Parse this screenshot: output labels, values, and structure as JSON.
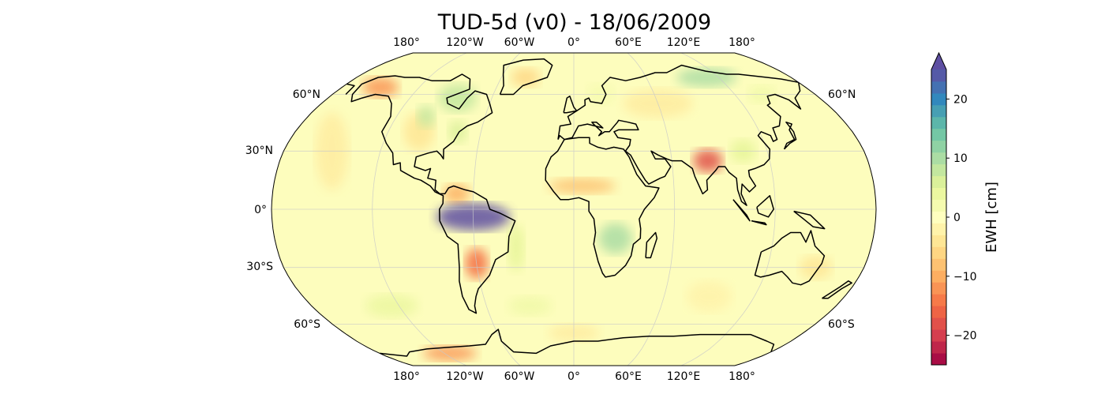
{
  "title": "TUD-5d (v0) - 18/06/2009",
  "lon_labels_top": [
    "180°",
    "120°W",
    "60°W",
    "0°",
    "60°E",
    "120°E",
    "180°"
  ],
  "lon_labels_bottom": [
    "180°",
    "120°W",
    "60°W",
    "0°",
    "60°E",
    "120°E",
    "180°"
  ],
  "lat_labels_left": [
    "60°N",
    "30°N",
    "0°",
    "30°S",
    "60°S"
  ],
  "lat_labels_right": [
    "60°N",
    "60°S"
  ],
  "colorbar": {
    "label": "EWH [cm]",
    "ticks": [
      "20",
      "10",
      "0",
      "−10",
      "−20"
    ],
    "tick_values": [
      20,
      10,
      0,
      -10,
      -20
    ],
    "range": [
      -25,
      25
    ],
    "extend": "max",
    "colormap": "Spectral",
    "colors": [
      "#9e0142",
      "#d53e4f",
      "#f46d43",
      "#fdae61",
      "#fee08b",
      "#ffffbf",
      "#e6f598",
      "#abdda4",
      "#66c2a5",
      "#3288bd",
      "#5e4fa2"
    ]
  },
  "map_data": {
    "projection": "Robinson",
    "field": "EWH anomaly",
    "units": "cm",
    "anomalies": [
      {
        "region": "Amazon basin",
        "value": 25
      },
      {
        "region": "Northern India / Ganges",
        "value": -18
      },
      {
        "region": "Canadian Arctic / Hudson Bay",
        "value": 8
      },
      {
        "region": "Siberia",
        "value": 10
      },
      {
        "region": "Southern Africa (Zambezi)",
        "value": 10
      },
      {
        "region": "La Plata basin",
        "value": -15
      },
      {
        "region": "Sahel",
        "value": -8
      },
      {
        "region": "Alaska",
        "value": -12
      },
      {
        "region": "West Antarctica",
        "value": -12
      }
    ]
  }
}
